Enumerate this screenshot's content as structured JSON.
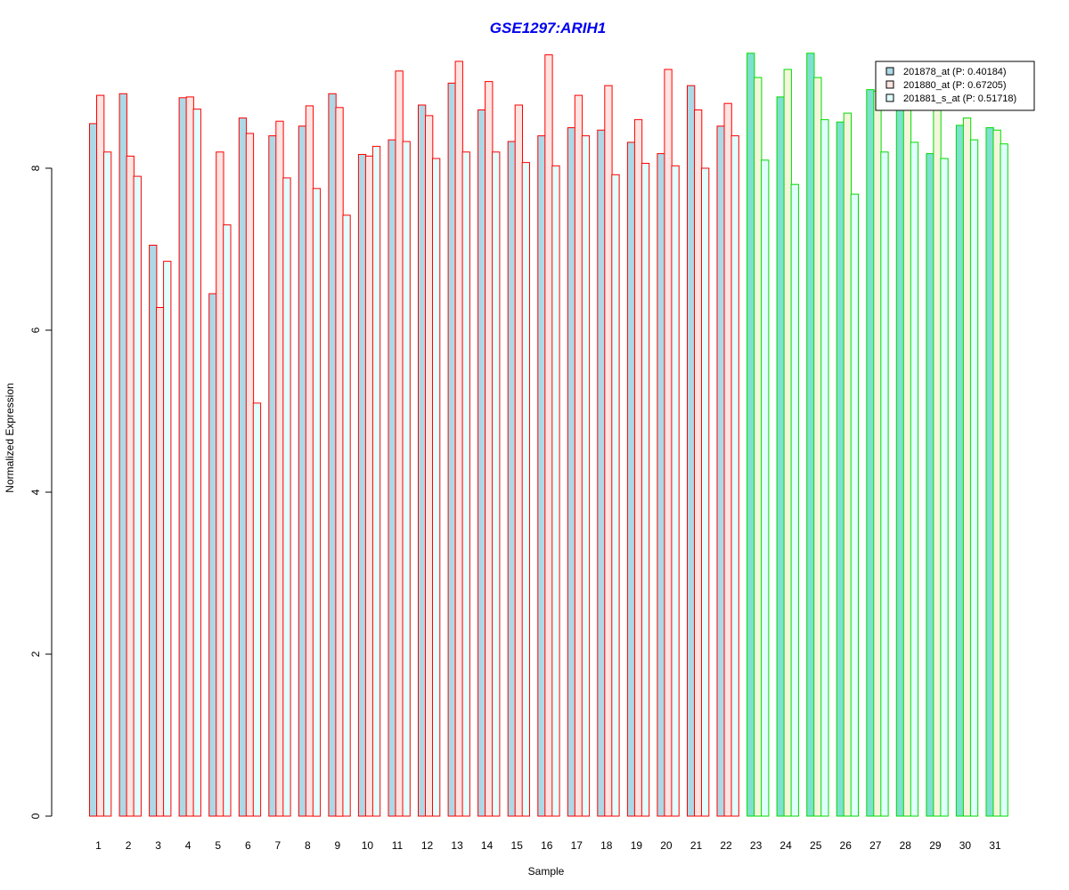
{
  "chart_data": {
    "type": "bar",
    "title": "GSE1297:ARIH1",
    "xlabel": "Sample",
    "ylabel": "Normalized Expression",
    "ylim": [
      0,
      9.4
    ],
    "yticks": [
      0,
      2,
      4,
      6,
      8
    ],
    "grid": false,
    "legend_position": "top-right",
    "categories": [
      "1",
      "2",
      "3",
      "4",
      "5",
      "6",
      "7",
      "8",
      "9",
      "10",
      "11",
      "12",
      "13",
      "14",
      "15",
      "16",
      "17",
      "18",
      "19",
      "20",
      "21",
      "22",
      "23",
      "24",
      "25",
      "26",
      "27",
      "28",
      "29",
      "30",
      "31"
    ],
    "series": [
      {
        "name": "201878_at (P: 0.40184)",
        "values": [
          8.55,
          8.92,
          7.05,
          8.87,
          6.45,
          8.62,
          8.4,
          8.52,
          8.92,
          8.17,
          8.35,
          8.78,
          9.05,
          8.72,
          8.33,
          8.4,
          8.5,
          8.47,
          8.32,
          8.18,
          9.02,
          8.52,
          9.42,
          8.88,
          9.42,
          8.57,
          8.97,
          8.8,
          8.18,
          8.53,
          8.5
        ]
      },
      {
        "name": "201880_at (P: 0.67205)",
        "values": [
          8.9,
          8.15,
          6.28,
          8.88,
          8.2,
          8.43,
          8.58,
          8.77,
          8.75,
          8.15,
          9.2,
          8.65,
          9.32,
          9.07,
          8.78,
          9.4,
          8.9,
          9.02,
          8.6,
          9.22,
          8.72,
          8.8,
          9.12,
          9.22,
          9.12,
          8.68,
          8.95,
          8.85,
          8.78,
          8.62,
          8.47
        ]
      },
      {
        "name": "201881_s_at (P: 0.51718)",
        "values": [
          8.2,
          7.9,
          6.85,
          8.73,
          7.3,
          5.1,
          7.88,
          7.75,
          7.42,
          8.27,
          8.33,
          8.12,
          8.2,
          8.2,
          8.07,
          8.03,
          8.4,
          7.92,
          8.06,
          8.03,
          8.0,
          8.4,
          8.1,
          7.8,
          8.6,
          7.68,
          8.2,
          8.32,
          8.12,
          8.35,
          8.3
        ]
      }
    ],
    "group_colors": {
      "group_a": {
        "samples": "1-22",
        "outline": "#ff0000"
      },
      "group_b": {
        "samples": "23-31",
        "outline": "#00dd00"
      }
    },
    "fill_colors": {
      "group_a": [
        "#add8e6",
        "#ffe4e1",
        "#e0ffff"
      ],
      "group_b": [
        "#7fdfd0",
        "#f5f5dc",
        "#e0ffff"
      ]
    },
    "title_color": "#0000ee"
  }
}
